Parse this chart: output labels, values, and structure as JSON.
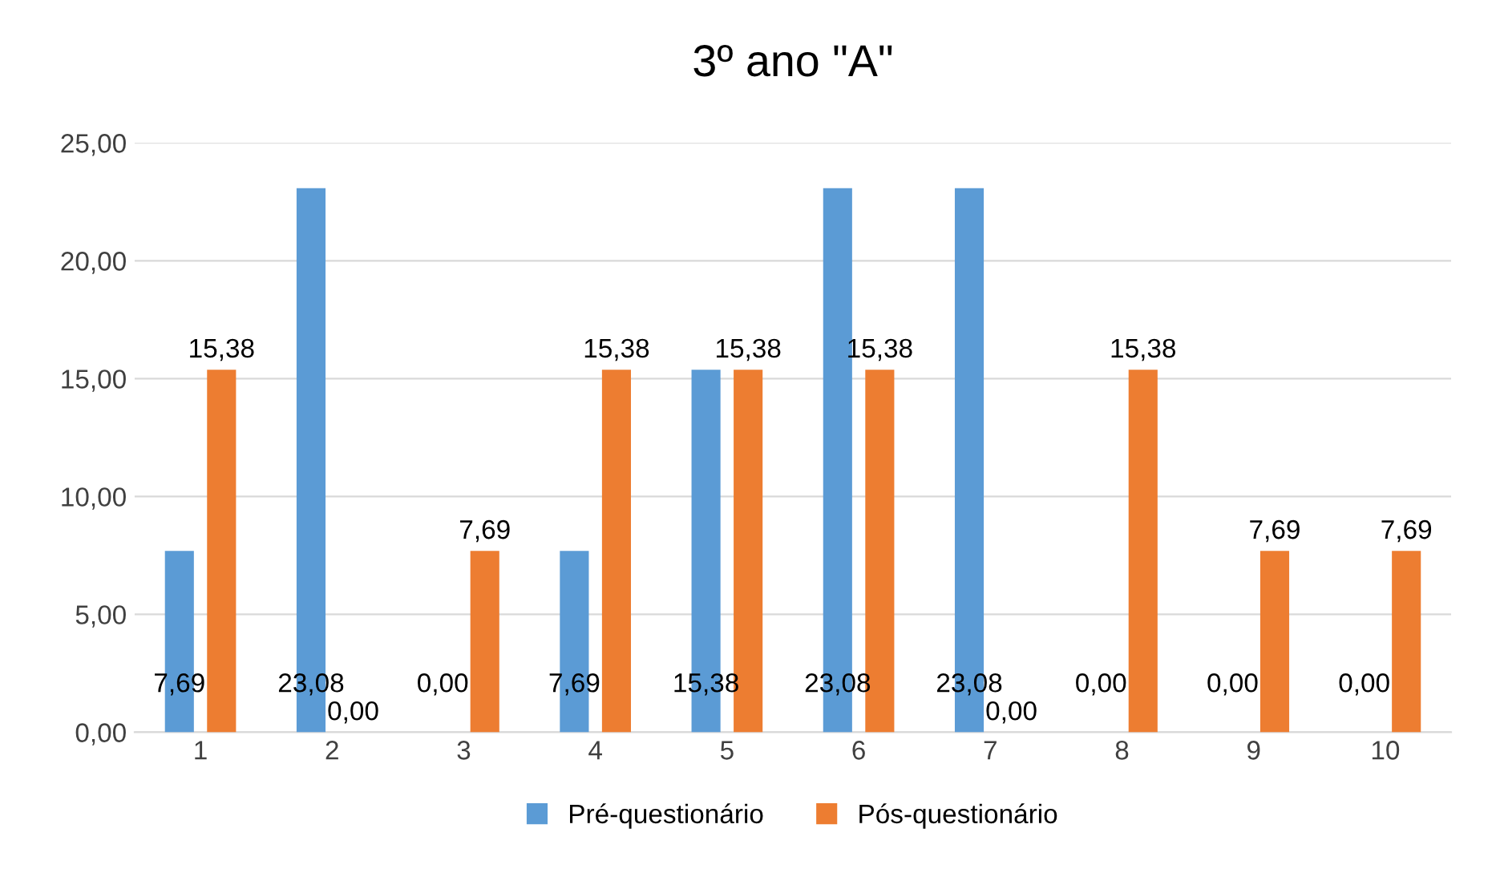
{
  "chart_data": {
    "type": "bar",
    "title": "3º ano \"A\"",
    "categories": [
      "1",
      "2",
      "3",
      "4",
      "5",
      "6",
      "7",
      "8",
      "9",
      "10"
    ],
    "series": [
      {
        "name": "Pré-questionário",
        "color": "#5b9bd5",
        "values": [
          7.69,
          23.08,
          0.0,
          7.69,
          15.38,
          23.08,
          23.08,
          0.0,
          0.0,
          0.0
        ],
        "value_labels": [
          "7,69",
          "23,08",
          "0,00",
          "7,69",
          "15,38",
          "23,08",
          "23,08",
          "0,00",
          "0,00",
          "0,00"
        ]
      },
      {
        "name": "Pós-questionário",
        "color": "#ed7d31",
        "values": [
          15.38,
          0.0,
          7.69,
          15.38,
          15.38,
          15.38,
          0.0,
          15.38,
          7.69,
          7.69
        ],
        "value_labels": [
          "15,38",
          "0,00",
          "7,69",
          "15,38",
          "15,38",
          "15,38",
          "0,00",
          "15,38",
          "7,69",
          "7,69"
        ]
      }
    ],
    "ylim": [
      0,
      25
    ],
    "yticks": [
      {
        "value": 0,
        "label": "0,00"
      },
      {
        "value": 5,
        "label": "5,00"
      },
      {
        "value": 10,
        "label": "10,00"
      },
      {
        "value": 15,
        "label": "15,00"
      },
      {
        "value": 20,
        "label": "20,00"
      },
      {
        "value": 25,
        "label": "25,00"
      }
    ],
    "grid": "y",
    "legend": "bottom"
  }
}
